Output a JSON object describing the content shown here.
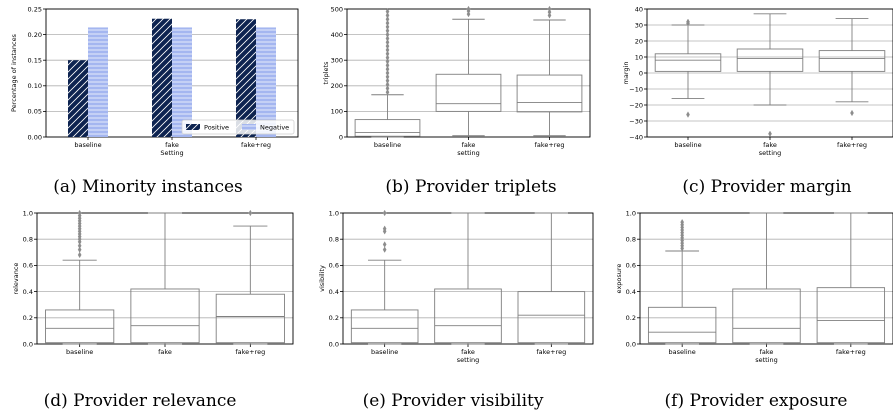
{
  "chart_data": [
    {
      "id": "a",
      "type": "bar",
      "caption": "(a) Minority instances",
      "xlabel": "Setting",
      "ylabel": "Percentage of instances",
      "categories": [
        "baseline",
        "fake",
        "fake+reg"
      ],
      "ylim": [
        0,
        0.25
      ],
      "yticks": [
        "0.00",
        "0.05",
        "0.10",
        "0.15",
        "0.20",
        "0.25"
      ],
      "grid": true,
      "legend_position": "bottom-right",
      "series": [
        {
          "name": "Positive",
          "values": [
            0.15,
            0.231,
            0.23
          ],
          "color": "#0d2350",
          "hatch": "diagonal"
        },
        {
          "name": "Negative",
          "values": [
            0.214,
            0.214,
            0.214
          ],
          "color": "#a4b6f0",
          "hatch": "horizontal"
        }
      ]
    },
    {
      "id": "b",
      "type": "box",
      "caption": "(b) Provider triplets",
      "xlabel": "setting",
      "ylabel": "triplets",
      "categories": [
        "baseline",
        "fake",
        "fake+reg"
      ],
      "ylim": [
        0,
        500
      ],
      "yticks": [
        "0",
        "100",
        "200",
        "300",
        "400",
        "500"
      ],
      "grid": true,
      "boxes": [
        {
          "whislo": 0,
          "q1": 3,
          "med": 18,
          "q3": 68,
          "whishi": 165,
          "fliers": [
            175,
            190,
            205,
            220,
            235,
            250,
            265,
            280,
            295,
            310,
            325,
            340,
            355,
            370,
            385,
            400,
            415,
            430,
            445,
            460,
            475,
            490
          ]
        },
        {
          "whislo": 5,
          "q1": 100,
          "med": 130,
          "q3": 245,
          "whishi": 460,
          "fliers": [
            480,
            492,
            500
          ]
        },
        {
          "whislo": 5,
          "q1": 98,
          "med": 135,
          "q3": 242,
          "whishi": 457,
          "fliers": [
            475,
            488,
            500
          ]
        }
      ]
    },
    {
      "id": "c",
      "type": "box",
      "caption": "(c) Provider margin",
      "xlabel": "setting",
      "ylabel": "margin",
      "categories": [
        "baseline",
        "fake",
        "fake+reg"
      ],
      "ylim": [
        -40,
        40
      ],
      "yticks": [
        "−40",
        "−30",
        "−20",
        "−10",
        "0",
        "10",
        "20",
        "30",
        "40"
      ],
      "grid": true,
      "boxes": [
        {
          "whislo": -16,
          "q1": 1,
          "med": 8,
          "q3": 12,
          "whishi": 30,
          "fliers": [
            -26,
            31,
            32
          ]
        },
        {
          "whislo": -20,
          "q1": 1,
          "med": 9,
          "q3": 15,
          "whishi": 37,
          "fliers": [
            -38
          ]
        },
        {
          "whislo": -18,
          "q1": 1,
          "med": 9,
          "q3": 14,
          "whishi": 34,
          "fliers": [
            -25
          ]
        }
      ]
    },
    {
      "id": "d",
      "type": "box",
      "caption": "(d) Provider relevance",
      "xlabel": "",
      "ylabel": "relevance",
      "categories": [
        "baseline",
        "fake",
        "fake+reg"
      ],
      "ylim": [
        0,
        1
      ],
      "yticks": [
        "0.0",
        "0.2",
        "0.4",
        "0.6",
        "0.8",
        "1.0"
      ],
      "grid": true,
      "boxes": [
        {
          "whislo": 0,
          "q1": 0.01,
          "med": 0.12,
          "q3": 0.26,
          "whishi": 0.64,
          "fliers": [
            0.68,
            0.72,
            0.75,
            0.78,
            0.8,
            0.82,
            0.84,
            0.86,
            0.88,
            0.9,
            0.92,
            0.94,
            0.96,
            0.98,
            1.0
          ]
        },
        {
          "whislo": 0,
          "q1": 0.01,
          "med": 0.14,
          "q3": 0.42,
          "whishi": 1.0,
          "fliers": []
        },
        {
          "whislo": 0,
          "q1": 0.01,
          "med": 0.21,
          "q3": 0.38,
          "whishi": 0.9,
          "fliers": [
            1.0
          ]
        }
      ]
    },
    {
      "id": "e",
      "type": "box",
      "caption": "(e) Provider visibility",
      "xlabel": "setting",
      "ylabel": "visibility",
      "categories": [
        "baseline",
        "fake",
        "fake+reg"
      ],
      "ylim": [
        0,
        1
      ],
      "yticks": [
        "0.0",
        "0.2",
        "0.4",
        "0.6",
        "0.8",
        "1.0"
      ],
      "grid": true,
      "boxes": [
        {
          "whislo": 0,
          "q1": 0.01,
          "med": 0.12,
          "q3": 0.26,
          "whishi": 0.64,
          "fliers": [
            0.72,
            0.76,
            0.86,
            0.88,
            1.0
          ]
        },
        {
          "whislo": 0,
          "q1": 0.01,
          "med": 0.14,
          "q3": 0.42,
          "whishi": 1.0,
          "fliers": []
        },
        {
          "whislo": 0,
          "q1": 0.01,
          "med": 0.22,
          "q3": 0.4,
          "whishi": 1.0,
          "fliers": []
        }
      ]
    },
    {
      "id": "f",
      "type": "box",
      "caption": "(f) Provider exposure",
      "xlabel": "setting",
      "ylabel": "exposure",
      "categories": [
        "baseline",
        "fake",
        "fake+reg"
      ],
      "ylim": [
        0,
        1
      ],
      "yticks": [
        "0.0",
        "0.2",
        "0.4",
        "0.6",
        "0.8",
        "1.0"
      ],
      "grid": true,
      "boxes": [
        {
          "whislo": 0,
          "q1": 0.01,
          "med": 0.09,
          "q3": 0.28,
          "whishi": 0.71,
          "fliers": [
            0.73,
            0.75,
            0.77,
            0.79,
            0.81,
            0.83,
            0.85,
            0.87,
            0.89,
            0.91,
            0.93
          ]
        },
        {
          "whislo": 0,
          "q1": 0.01,
          "med": 0.12,
          "q3": 0.42,
          "whishi": 1.0,
          "fliers": []
        },
        {
          "whislo": 0,
          "q1": 0.01,
          "med": 0.18,
          "q3": 0.43,
          "whishi": 1.0,
          "fliers": []
        }
      ]
    }
  ]
}
